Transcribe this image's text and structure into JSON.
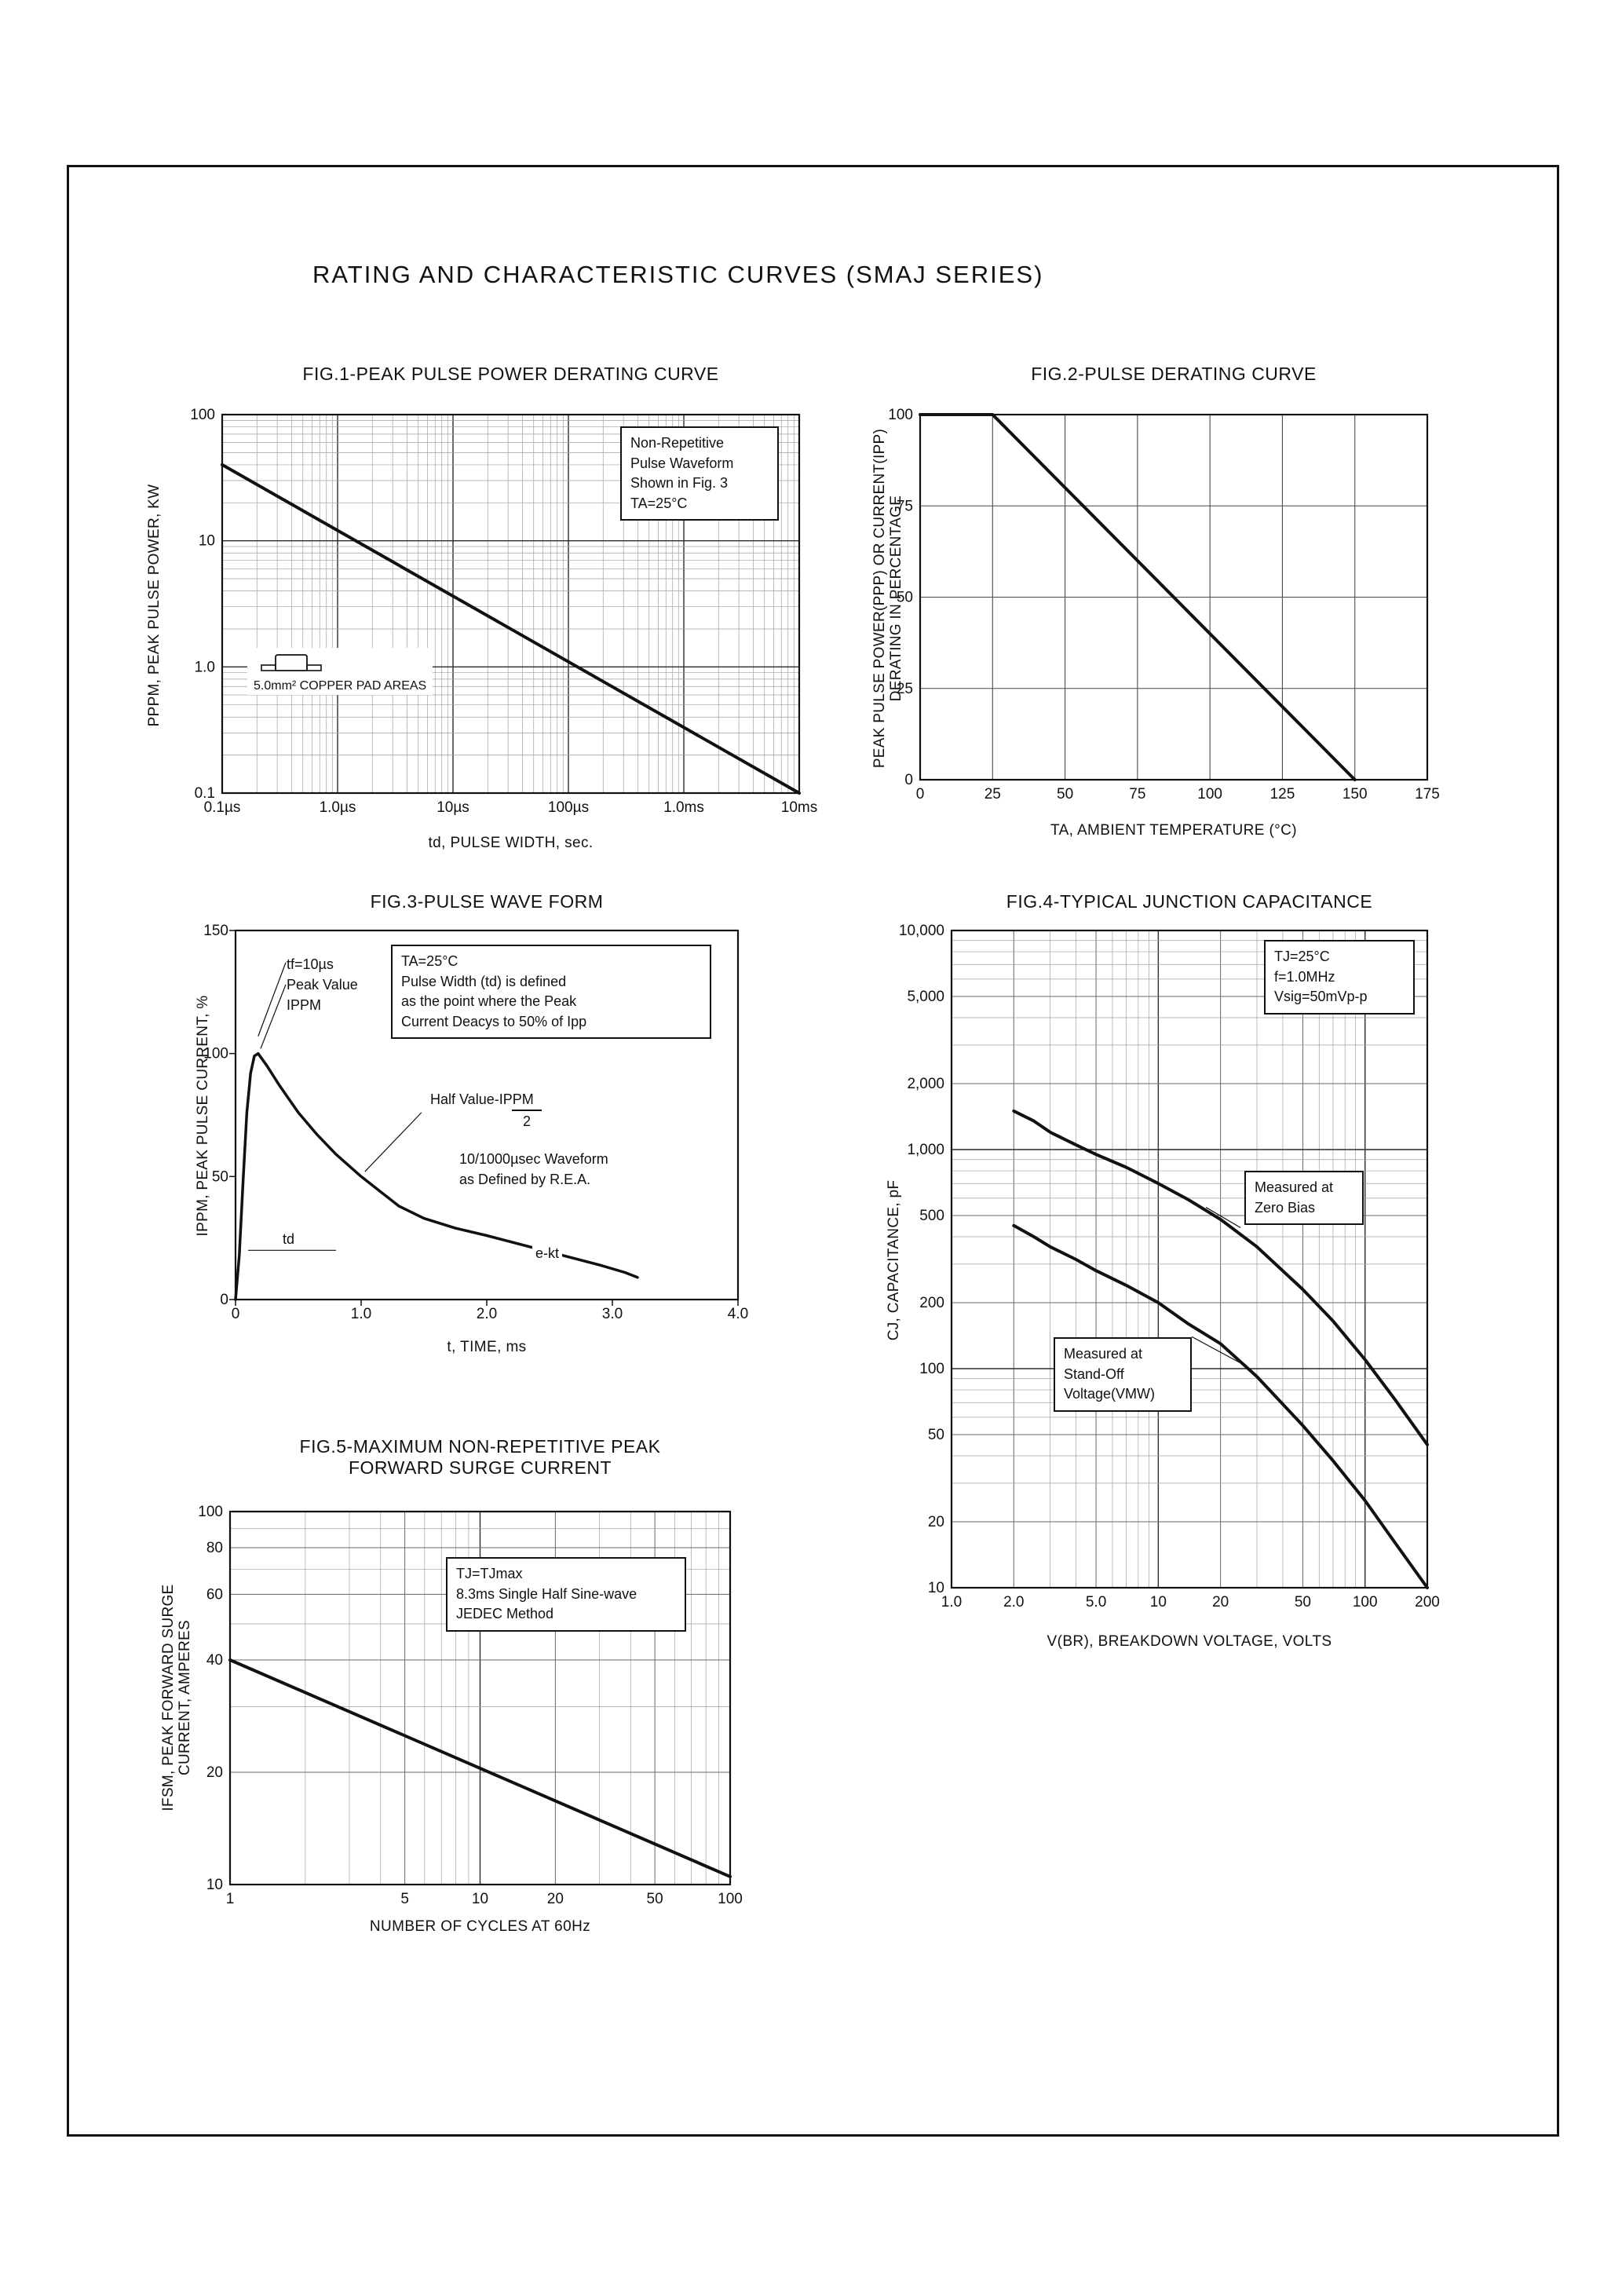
{
  "page": {
    "title": "RATING AND CHARACTERISTIC CURVES (SMAJ SERIES)"
  },
  "chart_data": [
    {
      "id": "fig1",
      "type": "line",
      "title": "FIG.1-PEAK PULSE POWER DERATING CURVE",
      "xlabel": "td, PULSE WIDTH, sec.",
      "ylabel": "PPPM, PEAK PULSE POWER, KW",
      "x_scale": "log",
      "y_scale": "log",
      "xlim": [
        1e-07,
        0.01
      ],
      "ylim": [
        0.1,
        100
      ],
      "x_ticks": [
        {
          "v": 1e-07,
          "label": "0.1µs"
        },
        {
          "v": 1e-06,
          "label": "1.0µs"
        },
        {
          "v": 1e-05,
          "label": "10µs"
        },
        {
          "v": 0.0001,
          "label": "100µs"
        },
        {
          "v": 0.001,
          "label": "1.0ms"
        },
        {
          "v": 0.01,
          "label": "10ms"
        }
      ],
      "y_ticks": [
        {
          "v": 100,
          "label": "100"
        },
        {
          "v": 10,
          "label": "10"
        },
        {
          "v": 1,
          "label": "1.0"
        },
        {
          "v": 0.1,
          "label": "0.1"
        }
      ],
      "series": [
        {
          "name": "peak-pulse-power",
          "width": 4,
          "points": [
            [
              1e-07,
              40
            ],
            [
              0.01,
              0.1
            ]
          ]
        }
      ],
      "annotations": {
        "note": {
          "l1": "Non-Repetitive",
          "l2": "Pulse Waveform",
          "l3": "Shown in Fig. 3",
          "l4": "TA=25°C"
        },
        "pad": {
          "label": "5.0mm² COPPER PAD AREAS"
        }
      }
    },
    {
      "id": "fig2",
      "type": "line",
      "title": "FIG.2-PULSE DERATING CURVE",
      "xlabel": "TA, AMBIENT TEMPERATURE (°C)",
      "ylabel": "PEAK PULSE POWER(PPP) OR CURRENT(IPP)",
      "ylabel2": "DERATING IN PERCENTAGE",
      "x_scale": "linear",
      "y_scale": "linear",
      "xlim": [
        0,
        175
      ],
      "ylim": [
        0,
        100
      ],
      "x_ticks": [
        {
          "v": 0,
          "label": "0"
        },
        {
          "v": 25,
          "label": "25"
        },
        {
          "v": 50,
          "label": "50"
        },
        {
          "v": 75,
          "label": "75"
        },
        {
          "v": 100,
          "label": "100"
        },
        {
          "v": 125,
          "label": "125"
        },
        {
          "v": 150,
          "label": "150"
        },
        {
          "v": 175,
          "label": "175"
        }
      ],
      "y_ticks": [
        {
          "v": 100,
          "label": "100"
        },
        {
          "v": 75,
          "label": "75"
        },
        {
          "v": 50,
          "label": "50"
        },
        {
          "v": 25,
          "label": "25"
        },
        {
          "v": 0,
          "label": "0"
        }
      ],
      "series": [
        {
          "name": "derating",
          "width": 4,
          "points": [
            [
              0,
              100
            ],
            [
              25,
              100
            ],
            [
              150,
              0
            ]
          ]
        }
      ],
      "annotations": {}
    },
    {
      "id": "fig3",
      "type": "line",
      "title": "FIG.3-PULSE WAVE FORM",
      "xlabel": "t, TIME, ms",
      "ylabel": "IPPM, PEAK PULSE CURRENT, %",
      "x_scale": "linear",
      "y_scale": "linear",
      "grid": "none",
      "xlim": [
        0,
        4
      ],
      "ylim": [
        0,
        150
      ],
      "x_ticks": [
        {
          "v": 0,
          "label": "0"
        },
        {
          "v": 1,
          "label": "1.0"
        },
        {
          "v": 2,
          "label": "2.0"
        },
        {
          "v": 3,
          "label": "3.0"
        },
        {
          "v": 4,
          "label": "4.0"
        }
      ],
      "y_ticks": [
        {
          "v": 150,
          "label": "150"
        },
        {
          "v": 100,
          "label": "100"
        },
        {
          "v": 50,
          "label": "50"
        },
        {
          "v": 0,
          "label": "0"
        }
      ],
      "series": [
        {
          "name": "pulse-waveform",
          "width": 3.5,
          "points": [
            [
              0,
              0
            ],
            [
              0.03,
              18
            ],
            [
              0.06,
              48
            ],
            [
              0.09,
              76
            ],
            [
              0.12,
              92
            ],
            [
              0.15,
              99
            ],
            [
              0.18,
              100
            ],
            [
              0.25,
              95
            ],
            [
              0.35,
              87
            ],
            [
              0.5,
              76
            ],
            [
              0.65,
              67
            ],
            [
              0.8,
              59
            ],
            [
              1.0,
              50
            ],
            [
              1.15,
              44
            ],
            [
              1.3,
              38
            ],
            [
              1.5,
              33
            ],
            [
              1.75,
              29
            ],
            [
              2.0,
              26
            ],
            [
              2.3,
              22
            ],
            [
              2.6,
              18
            ],
            [
              2.9,
              14
            ],
            [
              3.1,
              11
            ],
            [
              3.2,
              9
            ]
          ]
        }
      ],
      "leaders": [
        {
          "x1": 0.4,
          "y1": 137,
          "x2": 0.18,
          "y2": 107
        },
        {
          "x1": 0.4,
          "y1": 128,
          "x2": 0.2,
          "y2": 102
        },
        {
          "x1": 1.48,
          "y1": 76,
          "x2": 1.03,
          "y2": 52
        },
        {
          "x1": 0.1,
          "y1": 20,
          "x2": 0.8,
          "y2": 20
        }
      ],
      "annotations": {
        "peak": {
          "l1": "tf=10µs",
          "l2": "Peak Value",
          "l3": "IPPM"
        },
        "cond": {
          "l1": "TA=25°C",
          "l2": "Pulse Width (td) is defined",
          "l3": "as the point where the Peak",
          "l4": "Current Deacys to 50% of Ipp"
        },
        "half": {
          "l1": "Half Value-IPPM",
          "l2": "2"
        },
        "wave": {
          "l1": "10/1000µsec Waveform",
          "l2": "as Defined by R.E.A."
        },
        "td": {
          "label": "td"
        },
        "ekt": {
          "label": "e-kt"
        }
      }
    },
    {
      "id": "fig4",
      "type": "line",
      "title": "FIG.4-TYPICAL JUNCTION CAPACITANCE",
      "xlabel": "V(BR), BREAKDOWN VOLTAGE, VOLTS",
      "ylabel": "CJ, CAPACITANCE, pF",
      "x_scale": "log",
      "y_scale": "log",
      "xlim": [
        1,
        200
      ],
      "ylim": [
        10,
        10000
      ],
      "x_ticks": [
        {
          "v": 1,
          "label": "1.0"
        },
        {
          "v": 2,
          "label": "2.0"
        },
        {
          "v": 5,
          "label": "5.0"
        },
        {
          "v": 10,
          "label": "10"
        },
        {
          "v": 20,
          "label": "20"
        },
        {
          "v": 50,
          "label": "50"
        },
        {
          "v": 100,
          "label": "100"
        },
        {
          "v": 200,
          "label": "200"
        }
      ],
      "y_ticks": [
        {
          "v": 10000,
          "label": "10,000"
        },
        {
          "v": 5000,
          "label": "5,000"
        },
        {
          "v": 2000,
          "label": "2,000"
        },
        {
          "v": 1000,
          "label": "1,000"
        },
        {
          "v": 500,
          "label": "500"
        },
        {
          "v": 200,
          "label": "200"
        },
        {
          "v": 100,
          "label": "100"
        },
        {
          "v": 50,
          "label": "50"
        },
        {
          "v": 20,
          "label": "20"
        },
        {
          "v": 10,
          "label": "10"
        }
      ],
      "series": [
        {
          "name": "zero-bias",
          "width": 4,
          "points": [
            [
              2,
              1500
            ],
            [
              2.5,
              1350
            ],
            [
              3,
              1200
            ],
            [
              4,
              1050
            ],
            [
              5,
              950
            ],
            [
              7,
              830
            ],
            [
              10,
              700
            ],
            [
              14,
              590
            ],
            [
              20,
              480
            ],
            [
              30,
              360
            ],
            [
              50,
              230
            ],
            [
              70,
              165
            ],
            [
              100,
              110
            ],
            [
              140,
              72
            ],
            [
              200,
              45
            ]
          ]
        },
        {
          "name": "stand-off-voltage",
          "width": 4,
          "points": [
            [
              2,
              450
            ],
            [
              2.5,
              400
            ],
            [
              3,
              360
            ],
            [
              4,
              315
            ],
            [
              5,
              280
            ],
            [
              7,
              240
            ],
            [
              10,
              200
            ],
            [
              14,
              160
            ],
            [
              20,
              130
            ],
            [
              30,
              92
            ],
            [
              50,
              55
            ],
            [
              70,
              38
            ],
            [
              100,
              25
            ],
            [
              140,
              16
            ],
            [
              200,
              10
            ]
          ]
        }
      ],
      "leaders": [
        {
          "x1": 25,
          "y1": 440,
          "x2": 17,
          "y2": 545
        },
        {
          "x1": 14.5,
          "y1": 140,
          "x2": 27,
          "y2": 102
        }
      ],
      "annotations": {
        "cond": {
          "l1": "TJ=25°C",
          "l2": "f=1.0MHz",
          "l3": "Vsig=50mVp-p"
        },
        "zero": {
          "l1": "Measured at",
          "l2": "Zero Bias"
        },
        "standoff": {
          "l1": "Measured at",
          "l2": "Stand-Off",
          "l3": "Voltage(VMW)"
        }
      }
    },
    {
      "id": "fig5",
      "type": "line",
      "title": "FIG.5-MAXIMUM NON-REPETITIVE PEAK",
      "title2": "FORWARD SURGE CURRENT",
      "xlabel": "NUMBER OF CYCLES AT 60Hz",
      "ylabel": "IFSM, PEAK FORWARD SURGE",
      "ylabel2": "CURRENT, AMPERES",
      "x_scale": "log",
      "y_scale": "log",
      "xlim": [
        1,
        100
      ],
      "ylim": [
        10,
        100
      ],
      "x_ticks": [
        {
          "v": 1,
          "label": "1"
        },
        {
          "v": 5,
          "label": "5"
        },
        {
          "v": 10,
          "label": "10"
        },
        {
          "v": 20,
          "label": "20"
        },
        {
          "v": 50,
          "label": "50"
        },
        {
          "v": 100,
          "label": "100"
        }
      ],
      "y_ticks": [
        {
          "v": 100,
          "label": "100"
        },
        {
          "v": 80,
          "label": "80"
        },
        {
          "v": 60,
          "label": "60"
        },
        {
          "v": 40,
          "label": "40"
        },
        {
          "v": 20,
          "label": "20"
        },
        {
          "v": 10,
          "label": "10"
        }
      ],
      "series": [
        {
          "name": "surge-current",
          "width": 4,
          "points": [
            [
              1,
              40
            ],
            [
              100,
              10.5
            ]
          ]
        }
      ],
      "annotations": {
        "cond": {
          "l1": "TJ=TJmax",
          "l2": "8.3ms Single Half Sine-wave",
          "l3": "JEDEC Method"
        }
      }
    }
  ]
}
